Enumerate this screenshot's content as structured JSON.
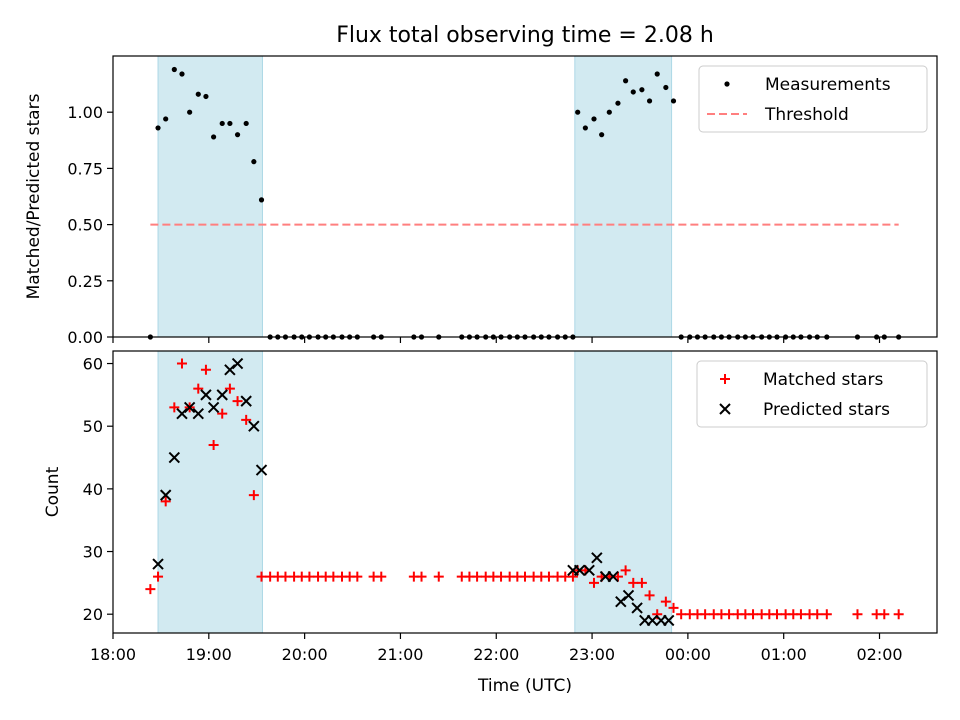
{
  "title": "Flux total observing time = 2.08 h",
  "colors": {
    "span": "#add8e6",
    "measurement": "#000000",
    "threshold": "#ff7f7f",
    "matched": "#ff0000",
    "predicted": "#000000"
  },
  "chart_data": [
    {
      "type": "scatter",
      "panel": "top",
      "title": "Flux total observing time = 2.08 h",
      "xlabel": "",
      "ylabel": "Matched/Predicted stars",
      "x_unit": "hours since 18:00 UTC",
      "xlim": [
        0,
        8.6
      ],
      "ylim": [
        0,
        1.25
      ],
      "yticks": [
        0.0,
        0.25,
        0.5,
        0.75,
        1.0
      ],
      "ytick_labels": [
        "0.00",
        "0.25",
        "0.50",
        "0.75",
        "1.00"
      ],
      "legend_position": "top-right",
      "legend": [
        "Measurements",
        "Threshold"
      ],
      "observing_spans": [
        [
          0.47,
          1.56
        ],
        [
          4.82,
          5.83
        ]
      ],
      "threshold": {
        "name": "Threshold",
        "y": 0.5,
        "x_range": [
          0.39,
          8.2
        ]
      },
      "series": [
        {
          "name": "Measurements",
          "x": [
            0.39,
            0.47,
            0.55,
            0.64,
            0.72,
            0.8,
            0.89,
            0.97,
            1.05,
            1.14,
            1.22,
            1.3,
            1.39,
            1.47,
            1.55,
            1.64,
            1.72,
            1.8,
            1.89,
            1.97,
            2.05,
            2.14,
            2.22,
            2.3,
            2.39,
            2.47,
            2.55,
            2.72,
            2.8,
            3.14,
            3.22,
            3.4,
            3.64,
            3.72,
            3.8,
            3.89,
            3.97,
            4.05,
            4.14,
            4.22,
            4.3,
            4.39,
            4.47,
            4.55,
            4.64,
            4.72,
            4.8,
            4.85,
            4.93,
            5.02,
            5.1,
            5.18,
            5.27,
            5.35,
            5.43,
            5.52,
            5.6,
            5.68,
            5.77,
            5.85,
            5.93,
            6.02,
            6.1,
            6.18,
            6.27,
            6.35,
            6.43,
            6.52,
            6.6,
            6.68,
            6.77,
            6.85,
            6.93,
            7.02,
            7.1,
            7.18,
            7.27,
            7.35,
            7.45,
            7.77,
            7.97,
            8.05,
            8.2
          ],
          "y": [
            0.0,
            0.93,
            0.97,
            1.19,
            1.17,
            1.0,
            1.08,
            1.07,
            0.89,
            0.95,
            0.95,
            0.9,
            0.95,
            0.78,
            0.61,
            0.0,
            0.0,
            0.0,
            0.0,
            0.0,
            0.0,
            0.0,
            0.0,
            0.0,
            0.0,
            0.0,
            0.0,
            0.0,
            0.0,
            0.0,
            0.0,
            0.0,
            0.0,
            0.0,
            0.0,
            0.0,
            0.0,
            0.0,
            0.0,
            0.0,
            0.0,
            0.0,
            0.0,
            0.0,
            0.0,
            0.0,
            0.0,
            1.0,
            0.93,
            0.97,
            0.9,
            1.0,
            1.04,
            1.14,
            1.09,
            1.1,
            1.05,
            1.17,
            1.11,
            1.05,
            0.0,
            0.0,
            0.0,
            0.0,
            0.0,
            0.0,
            0.0,
            0.0,
            0.0,
            0.0,
            0.0,
            0.0,
            0.0,
            0.0,
            0.0,
            0.0,
            0.0,
            0.0,
            0.0,
            0.0,
            0.0,
            0.0,
            0.0
          ]
        }
      ]
    },
    {
      "type": "scatter",
      "panel": "bottom",
      "title": "",
      "xlabel": "Time (UTC)",
      "ylabel": "Count",
      "x_unit": "hours since 18:00 UTC",
      "xlim": [
        0,
        8.6
      ],
      "ylim": [
        17,
        62
      ],
      "yticks": [
        20,
        30,
        40,
        50,
        60
      ],
      "ytick_labels": [
        "20",
        "30",
        "40",
        "50",
        "60"
      ],
      "xticks": [
        0,
        1,
        2,
        3,
        4,
        5,
        6,
        7,
        8
      ],
      "xtick_labels": [
        "18:00",
        "19:00",
        "20:00",
        "21:00",
        "22:00",
        "23:00",
        "00:00",
        "01:00",
        "02:00"
      ],
      "legend_position": "top-right",
      "legend": [
        "Matched stars",
        "Predicted stars"
      ],
      "observing_spans": [
        [
          0.47,
          1.56
        ],
        [
          4.82,
          5.83
        ]
      ],
      "series": [
        {
          "name": "Matched stars",
          "marker": "plus",
          "x": [
            0.39,
            0.47,
            0.55,
            0.64,
            0.72,
            0.8,
            0.89,
            0.97,
            1.05,
            1.14,
            1.22,
            1.3,
            1.39,
            1.47,
            1.55,
            1.64,
            1.72,
            1.8,
            1.89,
            1.97,
            2.05,
            2.14,
            2.22,
            2.3,
            2.39,
            2.47,
            2.55,
            2.72,
            2.8,
            3.14,
            3.22,
            3.4,
            3.64,
            3.72,
            3.8,
            3.89,
            3.97,
            4.05,
            4.14,
            4.22,
            4.3,
            4.39,
            4.47,
            4.55,
            4.64,
            4.72,
            4.8,
            4.85,
            4.93,
            5.02,
            5.1,
            5.18,
            5.27,
            5.35,
            5.43,
            5.52,
            5.6,
            5.68,
            5.77,
            5.85,
            5.93,
            6.02,
            6.1,
            6.18,
            6.27,
            6.35,
            6.43,
            6.52,
            6.6,
            6.68,
            6.77,
            6.85,
            6.93,
            7.02,
            7.1,
            7.18,
            7.27,
            7.35,
            7.45,
            7.77,
            7.97,
            8.05,
            8.2
          ],
          "y": [
            24,
            26,
            38,
            53,
            60,
            53,
            56,
            59,
            47,
            52,
            56,
            54,
            51,
            39,
            26,
            26,
            26,
            26,
            26,
            26,
            26,
            26,
            26,
            26,
            26,
            26,
            26,
            26,
            26,
            26,
            26,
            26,
            26,
            26,
            26,
            26,
            26,
            26,
            26,
            26,
            26,
            26,
            26,
            26,
            26,
            26,
            26,
            27,
            27,
            25,
            26,
            26,
            26,
            27,
            25,
            25,
            23,
            20,
            22,
            21,
            20,
            20,
            20,
            20,
            20,
            20,
            20,
            20,
            20,
            20,
            20,
            20,
            20,
            20,
            20,
            20,
            20,
            20,
            20,
            20,
            20,
            20,
            20
          ]
        },
        {
          "name": "Predicted stars",
          "marker": "x",
          "x": [
            0.47,
            0.55,
            0.64,
            0.72,
            0.8,
            0.89,
            0.97,
            1.05,
            1.14,
            1.22,
            1.3,
            1.39,
            1.47,
            1.55,
            4.8,
            4.87,
            4.97,
            5.05,
            5.14,
            5.22,
            5.3,
            5.38,
            5.47,
            5.55,
            5.63,
            5.72,
            5.8
          ],
          "y": [
            28,
            39,
            45,
            52,
            53,
            52,
            55,
            53,
            55,
            59,
            60,
            54,
            50,
            43,
            27,
            27,
            27,
            29,
            26,
            26,
            22,
            23,
            21,
            19,
            19,
            19,
            19
          ]
        }
      ]
    }
  ]
}
